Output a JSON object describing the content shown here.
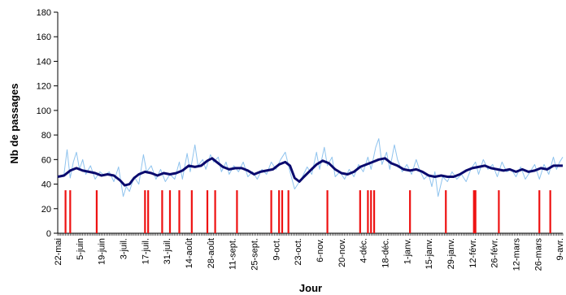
{
  "chart_data": {
    "type": "line",
    "title": "",
    "xlabel": "Jour",
    "ylabel": "Nb de passages",
    "ylim": [
      0,
      180
    ],
    "y_ticks": [
      0,
      20,
      40,
      60,
      80,
      100,
      120,
      140,
      160,
      180
    ],
    "x_range_days": [
      0,
      324
    ],
    "x_tick_labels": [
      {
        "day": 0,
        "label": "22-mai"
      },
      {
        "day": 14,
        "label": "5-juin"
      },
      {
        "day": 28,
        "label": "19-juin"
      },
      {
        "day": 42,
        "label": "3-juil."
      },
      {
        "day": 56,
        "label": "17-juil."
      },
      {
        "day": 70,
        "label": "31-juil."
      },
      {
        "day": 84,
        "label": "14-août"
      },
      {
        "day": 98,
        "label": "28-août"
      },
      {
        "day": 112,
        "label": "11-sept."
      },
      {
        "day": 126,
        "label": "25-sept."
      },
      {
        "day": 140,
        "label": "9-oct."
      },
      {
        "day": 154,
        "label": "23-oct."
      },
      {
        "day": 168,
        "label": "6-nov."
      },
      {
        "day": 182,
        "label": "20-nov."
      },
      {
        "day": 196,
        "label": "4-déc."
      },
      {
        "day": 210,
        "label": "18-déc."
      },
      {
        "day": 224,
        "label": "1-janv."
      },
      {
        "day": 238,
        "label": "15-janv."
      },
      {
        "day": 252,
        "label": "29-janv."
      },
      {
        "day": 266,
        "label": "12-févr."
      },
      {
        "day": 280,
        "label": "26-févr."
      },
      {
        "day": 294,
        "label": "12-mars"
      },
      {
        "day": 308,
        "label": "26-mars"
      },
      {
        "day": 322,
        "label": "9-avr."
      }
    ],
    "grid": false,
    "legend": "none",
    "series": [
      {
        "style": "thin-line",
        "color": "#8fc3ee",
        "points": [
          [
            0,
            46
          ],
          [
            4,
            48
          ],
          [
            6,
            68
          ],
          [
            8,
            45
          ],
          [
            10,
            58
          ],
          [
            12,
            66
          ],
          [
            14,
            52
          ],
          [
            16,
            60
          ],
          [
            18,
            48
          ],
          [
            21,
            55
          ],
          [
            24,
            44
          ],
          [
            27,
            50
          ],
          [
            30,
            47
          ],
          [
            33,
            50
          ],
          [
            36,
            42
          ],
          [
            39,
            54
          ],
          [
            42,
            30
          ],
          [
            44,
            38
          ],
          [
            46,
            34
          ],
          [
            49,
            46
          ],
          [
            52,
            40
          ],
          [
            55,
            64
          ],
          [
            57,
            50
          ],
          [
            60,
            55
          ],
          [
            63,
            44
          ],
          [
            66,
            52
          ],
          [
            69,
            42
          ],
          [
            72,
            48
          ],
          [
            75,
            44
          ],
          [
            78,
            58
          ],
          [
            80,
            44
          ],
          [
            83,
            65
          ],
          [
            85,
            50
          ],
          [
            88,
            72
          ],
          [
            90,
            55
          ],
          [
            93,
            60
          ],
          [
            95,
            52
          ],
          [
            98,
            64
          ],
          [
            100,
            58
          ],
          [
            103,
            62
          ],
          [
            105,
            50
          ],
          [
            108,
            58
          ],
          [
            110,
            48
          ],
          [
            113,
            55
          ],
          [
            116,
            50
          ],
          [
            119,
            58
          ],
          [
            122,
            46
          ],
          [
            125,
            50
          ],
          [
            128,
            44
          ],
          [
            131,
            52
          ],
          [
            134,
            48
          ],
          [
            137,
            58
          ],
          [
            140,
            52
          ],
          [
            143,
            60
          ],
          [
            146,
            66
          ],
          [
            149,
            50
          ],
          [
            152,
            36
          ],
          [
            154,
            40
          ],
          [
            157,
            46
          ],
          [
            160,
            54
          ],
          [
            163,
            48
          ],
          [
            166,
            66
          ],
          [
            168,
            52
          ],
          [
            171,
            70
          ],
          [
            173,
            55
          ],
          [
            176,
            62
          ],
          [
            178,
            46
          ],
          [
            181,
            50
          ],
          [
            184,
            44
          ],
          [
            187,
            52
          ],
          [
            190,
            46
          ],
          [
            193,
            56
          ],
          [
            196,
            50
          ],
          [
            199,
            62
          ],
          [
            201,
            52
          ],
          [
            204,
            70
          ],
          [
            206,
            77
          ],
          [
            208,
            56
          ],
          [
            211,
            66
          ],
          [
            213,
            52
          ],
          [
            216,
            72
          ],
          [
            218,
            60
          ],
          [
            221,
            50
          ],
          [
            224,
            56
          ],
          [
            227,
            48
          ],
          [
            230,
            60
          ],
          [
            232,
            52
          ],
          [
            235,
            44
          ],
          [
            238,
            48
          ],
          [
            240,
            38
          ],
          [
            242,
            50
          ],
          [
            244,
            30
          ],
          [
            247,
            46
          ],
          [
            250,
            42
          ],
          [
            253,
            50
          ],
          [
            256,
            44
          ],
          [
            259,
            48
          ],
          [
            262,
            42
          ],
          [
            265,
            52
          ],
          [
            268,
            58
          ],
          [
            270,
            48
          ],
          [
            273,
            60
          ],
          [
            276,
            52
          ],
          [
            279,
            56
          ],
          [
            282,
            46
          ],
          [
            285,
            58
          ],
          [
            288,
            50
          ],
          [
            291,
            52
          ],
          [
            294,
            46
          ],
          [
            297,
            54
          ],
          [
            300,
            44
          ],
          [
            303,
            50
          ],
          [
            306,
            56
          ],
          [
            309,
            44
          ],
          [
            312,
            56
          ],
          [
            315,
            48
          ],
          [
            318,
            62
          ],
          [
            320,
            52
          ],
          [
            322,
            58
          ],
          [
            324,
            62
          ]
        ]
      },
      {
        "style": "thick-line",
        "color": "#0a0a6e",
        "points": [
          [
            0,
            46
          ],
          [
            4,
            47
          ],
          [
            8,
            51
          ],
          [
            12,
            53
          ],
          [
            16,
            51
          ],
          [
            20,
            50
          ],
          [
            24,
            49
          ],
          [
            28,
            47
          ],
          [
            32,
            48
          ],
          [
            36,
            47
          ],
          [
            40,
            43
          ],
          [
            43,
            39
          ],
          [
            46,
            40
          ],
          [
            49,
            45
          ],
          [
            52,
            48
          ],
          [
            56,
            50
          ],
          [
            60,
            49
          ],
          [
            64,
            47
          ],
          [
            68,
            49
          ],
          [
            72,
            48
          ],
          [
            76,
            49
          ],
          [
            80,
            51
          ],
          [
            84,
            55
          ],
          [
            88,
            54
          ],
          [
            92,
            55
          ],
          [
            96,
            59
          ],
          [
            99,
            61
          ],
          [
            102,
            58
          ],
          [
            106,
            54
          ],
          [
            110,
            52
          ],
          [
            114,
            53
          ],
          [
            118,
            53
          ],
          [
            122,
            51
          ],
          [
            126,
            48
          ],
          [
            130,
            50
          ],
          [
            134,
            51
          ],
          [
            138,
            52
          ],
          [
            142,
            56
          ],
          [
            146,
            58
          ],
          [
            149,
            55
          ],
          [
            152,
            45
          ],
          [
            155,
            42
          ],
          [
            158,
            46
          ],
          [
            162,
            51
          ],
          [
            166,
            56
          ],
          [
            170,
            59
          ],
          [
            174,
            57
          ],
          [
            178,
            52
          ],
          [
            182,
            49
          ],
          [
            186,
            48
          ],
          [
            190,
            50
          ],
          [
            194,
            54
          ],
          [
            198,
            56
          ],
          [
            202,
            58
          ],
          [
            206,
            60
          ],
          [
            210,
            61
          ],
          [
            214,
            57
          ],
          [
            218,
            55
          ],
          [
            222,
            52
          ],
          [
            226,
            51
          ],
          [
            230,
            52
          ],
          [
            234,
            50
          ],
          [
            238,
            47
          ],
          [
            242,
            46
          ],
          [
            246,
            47
          ],
          [
            250,
            46
          ],
          [
            254,
            46
          ],
          [
            258,
            48
          ],
          [
            262,
            51
          ],
          [
            266,
            53
          ],
          [
            270,
            54
          ],
          [
            274,
            55
          ],
          [
            278,
            53
          ],
          [
            282,
            52
          ],
          [
            286,
            51
          ],
          [
            290,
            52
          ],
          [
            294,
            50
          ],
          [
            298,
            52
          ],
          [
            302,
            50
          ],
          [
            306,
            51
          ],
          [
            310,
            53
          ],
          [
            314,
            52
          ],
          [
            318,
            55
          ],
          [
            322,
            55
          ],
          [
            324,
            55
          ]
        ]
      }
    ],
    "event_markers": {
      "color": "#ee1111",
      "value": 35,
      "days": [
        5,
        8,
        25,
        56,
        58,
        67,
        72,
        78,
        86,
        96,
        101,
        115,
        137,
        142,
        144,
        148,
        173,
        194,
        199,
        201,
        203,
        226,
        249,
        267,
        268,
        283,
        309,
        316
      ]
    }
  }
}
